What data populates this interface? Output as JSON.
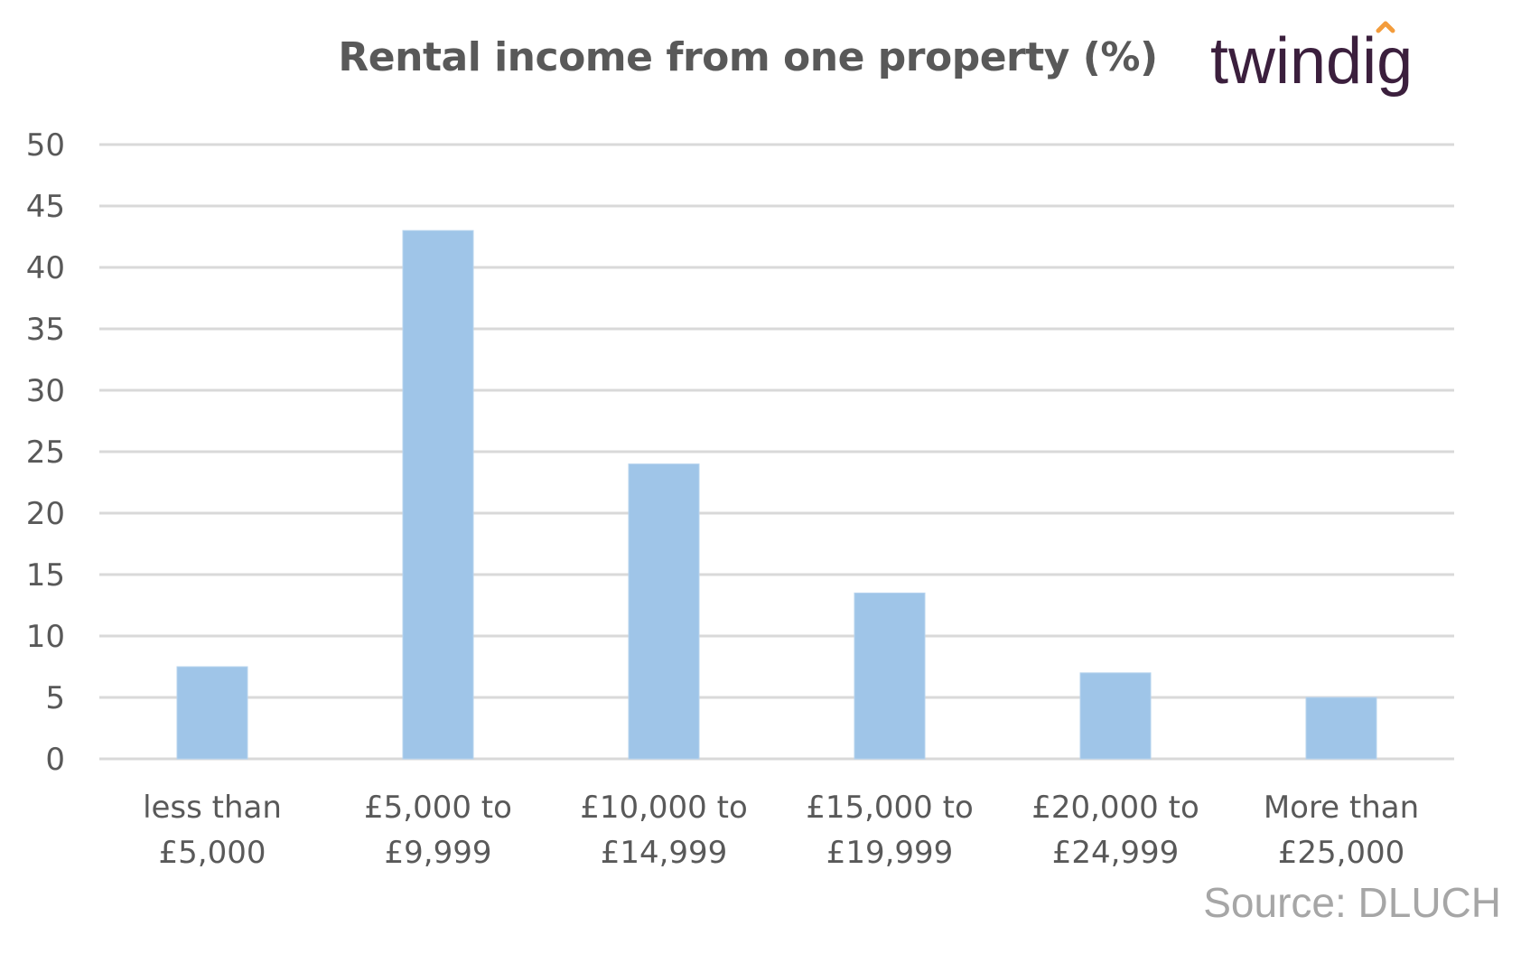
{
  "logo": {
    "text": "twindig",
    "colors": {
      "text": "#3b1f3d",
      "accent": "#f39c3c"
    }
  },
  "source": "Source: DLUCH",
  "colors": {
    "bar": "#9fc5e8",
    "grid": "#d9d9d9",
    "text": "#595959"
  },
  "chart_data": {
    "type": "bar",
    "title": "Rental income from one property (%)",
    "xlabel": "",
    "ylabel": "",
    "categories": [
      [
        "less than",
        "£5,000"
      ],
      [
        "£5,000 to",
        "£9,999"
      ],
      [
        "£10,000 to",
        "£14,999"
      ],
      [
        "£15,000 to",
        "£19,999"
      ],
      [
        "£20,000 to",
        "£24,999"
      ],
      [
        "More than",
        "£25,000"
      ]
    ],
    "values": [
      7.5,
      43,
      24,
      13.5,
      7,
      5
    ],
    "ylim": [
      0,
      50
    ],
    "yticks": [
      "0",
      "5",
      "10",
      "15",
      "20",
      "25",
      "30",
      "35",
      "40",
      "45",
      "50"
    ],
    "grid": true,
    "legend": "none"
  }
}
